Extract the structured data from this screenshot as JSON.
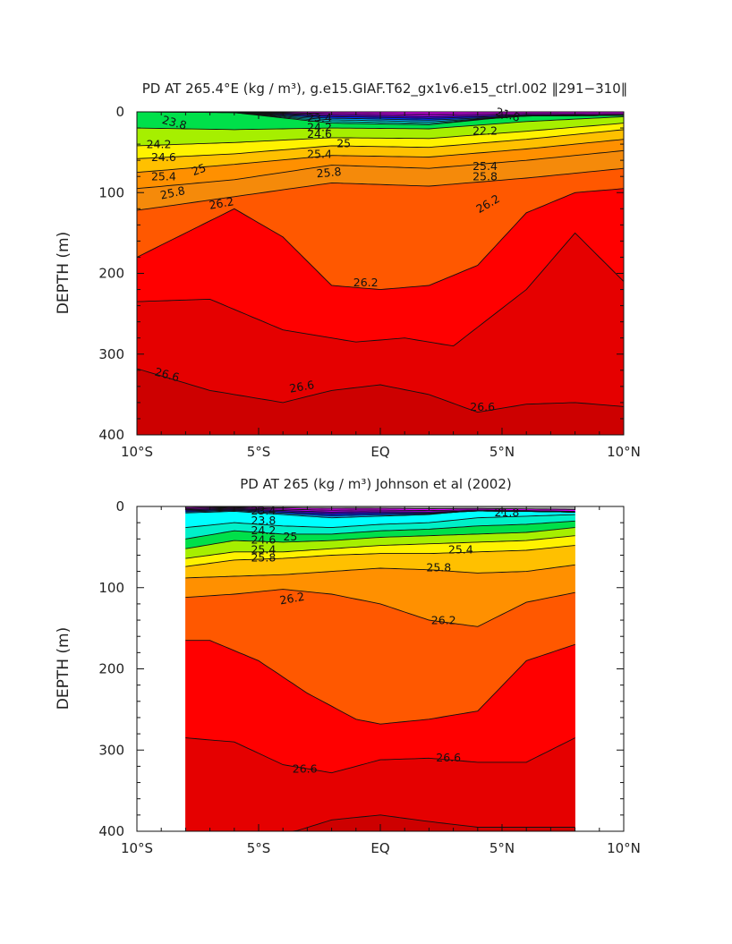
{
  "chart_data": [
    {
      "type": "contour",
      "title": "PD AT 265.4°E (kg / m³), g.e15.GIAF.T62_gx1v6.e15_ctrl.002 ‖291−310‖",
      "ylabel": "DEPTH (m)",
      "xlabel": "",
      "xlim": [
        -10,
        10
      ],
      "ylim": [
        0,
        400
      ],
      "y_inverted": true,
      "x_ticks": [
        {
          "v": -10,
          "label": "10°S"
        },
        {
          "v": -5,
          "label": "5°S"
        },
        {
          "v": 0,
          "label": "EQ"
        },
        {
          "v": 5,
          "label": "5°N"
        },
        {
          "v": 10,
          "label": "10°N"
        }
      ],
      "y_ticks": [
        {
          "v": 0,
          "label": "0"
        },
        {
          "v": 100,
          "label": "100"
        },
        {
          "v": 200,
          "label": "200"
        },
        {
          "v": 300,
          "label": "300"
        },
        {
          "v": 400,
          "label": "400"
        }
      ],
      "data_xrange": [
        -10,
        10
      ],
      "contours": [
        {
          "level": 23.4,
          "x": [
            -10,
            -6,
            -2,
            2,
            6,
            10
          ],
          "y": [
            0,
            1,
            14,
            16,
            4,
            0
          ]
        },
        {
          "level": 23.8,
          "x": [
            -10,
            -6,
            -2,
            2,
            6,
            10
          ],
          "y": [
            20,
            22,
            20,
            21,
            12,
            6
          ]
        },
        {
          "level": 24.2,
          "x": [
            -10,
            -6,
            -2,
            2,
            6,
            10
          ],
          "y": [
            42,
            38,
            32,
            33,
            24,
            14
          ]
        },
        {
          "level": 24.6,
          "x": [
            -10,
            -6,
            -2,
            2,
            6,
            10
          ],
          "y": [
            58,
            52,
            42,
            44,
            34,
            22
          ]
        },
        {
          "level": 25,
          "x": [
            -10,
            -6,
            -2,
            2,
            6,
            10
          ],
          "y": [
            75,
            65,
            54,
            56,
            46,
            34
          ]
        },
        {
          "level": 25.4,
          "x": [
            -10,
            -6,
            -2,
            2,
            6,
            10
          ],
          "y": [
            95,
            84,
            66,
            70,
            60,
            48
          ]
        },
        {
          "level": 25.8,
          "x": [
            -10,
            -6,
            -2,
            2,
            6,
            10
          ],
          "y": [
            122,
            105,
            88,
            92,
            82,
            70
          ]
        },
        {
          "level": 26.2,
          "x": [
            -10,
            -8,
            -6,
            -4,
            -2,
            0,
            2,
            4,
            6,
            8,
            10
          ],
          "y": [
            180,
            150,
            120,
            155,
            215,
            220,
            215,
            190,
            125,
            100,
            95
          ]
        },
        {
          "level": 26.4,
          "x": [
            -10,
            -7,
            -4,
            -1,
            1,
            3,
            6,
            8,
            10
          ],
          "y": [
            235,
            232,
            270,
            285,
            280,
            290,
            220,
            150,
            210
          ]
        },
        {
          "level": 26.6,
          "x": [
            -10,
            -7,
            -4,
            -2,
            0,
            2,
            4,
            6,
            8,
            10
          ],
          "y": [
            318,
            345,
            360,
            345,
            338,
            350,
            372,
            362,
            360,
            365
          ]
        }
      ],
      "contour_labels": [
        {
          "text": "21.8",
          "x": 5.2,
          "y": 8,
          "rotate": 15
        },
        {
          "text": "23.4",
          "x": -2.5,
          "y": 12,
          "rotate": 0
        },
        {
          "text": "23.8",
          "x": -8.5,
          "y": 18,
          "rotate": 15
        },
        {
          "text": "24.2",
          "x": -2.5,
          "y": 24,
          "rotate": 0
        },
        {
          "text": "24.2",
          "x": -9.1,
          "y": 45,
          "rotate": 0
        },
        {
          "text": "24.6",
          "x": -2.5,
          "y": 32,
          "rotate": 0
        },
        {
          "text": "24.6",
          "x": -8.9,
          "y": 61,
          "rotate": 0
        },
        {
          "text": "25",
          "x": -7.4,
          "y": 76,
          "rotate": -20
        },
        {
          "text": "25",
          "x": -1.5,
          "y": 44,
          "rotate": 0
        },
        {
          "text": "25.4",
          "x": -2.5,
          "y": 57,
          "rotate": 0
        },
        {
          "text": "25.4",
          "x": -8.9,
          "y": 85,
          "rotate": 0
        },
        {
          "text": "25.8",
          "x": -2.1,
          "y": 80,
          "rotate": -5
        },
        {
          "text": "25.8",
          "x": -8.5,
          "y": 105,
          "rotate": -12
        },
        {
          "text": "25.8",
          "x": 4.3,
          "y": 85,
          "rotate": 0
        },
        {
          "text": "22.2",
          "x": 4.3,
          "y": 28,
          "rotate": 0
        },
        {
          "text": "25.4",
          "x": 4.3,
          "y": 72,
          "rotate": 0
        },
        {
          "text": "26.2",
          "x": -6.5,
          "y": 118,
          "rotate": -10
        },
        {
          "text": "26.2",
          "x": 4.5,
          "y": 118,
          "rotate": -30
        },
        {
          "text": "26.2",
          "x": -0.6,
          "y": 216,
          "rotate": 0
        },
        {
          "text": "26.6",
          "x": -8.8,
          "y": 330,
          "rotate": 15
        },
        {
          "text": "26.6",
          "x": -3.2,
          "y": 345,
          "rotate": -10
        },
        {
          "text": "26.6",
          "x": 4.2,
          "y": 370,
          "rotate": 0
        }
      ],
      "colors": {
        "magenta": "#e100ff",
        "purple": "#b000e6",
        "indigo": "#4b00e0",
        "blue": "#0030ff",
        "lightblue": "#00a8ff",
        "cyan": "#00ffff",
        "aqua": "#00f0c8",
        "green": "#00e04a",
        "yellowgreen": "#a6ef00",
        "yellow": "#fff200",
        "goldorange": "#ffc000",
        "orange": "#ff9000",
        "deeporange": "#f58a0a",
        "redorange": "#ff5800",
        "red": "#ff0000",
        "darkred1": "#e50000",
        "darkred2": "#cd0000",
        "gray": "#aaaaaa"
      }
    },
    {
      "type": "contour",
      "title": "PD AT 265 (kg / m³) Johnson et al (2002)",
      "ylabel": "DEPTH (m)",
      "xlabel": "",
      "xlim": [
        -10,
        10
      ],
      "ylim": [
        0,
        400
      ],
      "y_inverted": true,
      "x_ticks": [
        {
          "v": -10,
          "label": "10°S"
        },
        {
          "v": -5,
          "label": "5°S"
        },
        {
          "v": 0,
          "label": "EQ"
        },
        {
          "v": 5,
          "label": "5°N"
        },
        {
          "v": 10,
          "label": "10°N"
        }
      ],
      "y_ticks": [
        {
          "v": 0,
          "label": "0"
        },
        {
          "v": 100,
          "label": "100"
        },
        {
          "v": 200,
          "label": "200"
        },
        {
          "v": 300,
          "label": "300"
        },
        {
          "v": 400,
          "label": "400"
        }
      ],
      "data_xrange": [
        -8,
        8
      ],
      "contours": [
        {
          "level": 23.4,
          "x": [
            -8,
            -6,
            -4,
            -2,
            0,
            2,
            4,
            6,
            8
          ],
          "y": [
            8,
            6,
            10,
            14,
            12,
            10,
            4,
            3,
            2
          ]
        },
        {
          "level": 23.8,
          "x": [
            -8,
            -6,
            -4,
            -2,
            0,
            2,
            4,
            6,
            8
          ],
          "y": [
            26,
            20,
            24,
            26,
            22,
            20,
            14,
            12,
            10
          ]
        },
        {
          "level": 24.2,
          "x": [
            -8,
            -6,
            -4,
            -2,
            0,
            2,
            4,
            6,
            8
          ],
          "y": [
            40,
            30,
            34,
            34,
            30,
            28,
            24,
            22,
            18
          ]
        },
        {
          "level": 24.6,
          "x": [
            -8,
            -6,
            -4,
            -2,
            0,
            2,
            4,
            6,
            8
          ],
          "y": [
            52,
            42,
            44,
            42,
            38,
            36,
            34,
            32,
            26
          ]
        },
        {
          "level": 25,
          "x": [
            -8,
            -6,
            -4,
            -2,
            0,
            2,
            4,
            6,
            8
          ],
          "y": [
            64,
            56,
            56,
            52,
            48,
            46,
            44,
            42,
            36
          ]
        },
        {
          "level": 25.4,
          "x": [
            -8,
            -6,
            -4,
            -2,
            0,
            2,
            4,
            6,
            8
          ],
          "y": [
            74,
            66,
            64,
            60,
            58,
            58,
            56,
            54,
            48
          ]
        },
        {
          "level": 25.8,
          "x": [
            -8,
            -6,
            -4,
            -2,
            0,
            2,
            4,
            6,
            8
          ],
          "y": [
            88,
            86,
            84,
            80,
            76,
            78,
            82,
            80,
            72
          ]
        },
        {
          "level": 26.2,
          "x": [
            -8,
            -6,
            -4,
            -2,
            0,
            2,
            4,
            6,
            8
          ],
          "y": [
            112,
            108,
            102,
            108,
            120,
            140,
            148,
            118,
            106
          ]
        },
        {
          "level": 26.4,
          "x": [
            -8,
            -7,
            -5,
            -3,
            -1,
            0,
            2,
            4,
            6,
            8
          ],
          "y": [
            165,
            165,
            190,
            230,
            262,
            268,
            262,
            252,
            190,
            170
          ]
        },
        {
          "level": 26.6,
          "x": [
            -8,
            -6,
            -4,
            -2,
            0,
            2,
            4,
            6,
            8
          ],
          "y": [
            285,
            290,
            318,
            328,
            312,
            310,
            315,
            315,
            285
          ]
        },
        {
          "level": 26.8,
          "x": [
            -3.5,
            -2,
            0,
            2,
            4
          ],
          "y": [
            400,
            386,
            380,
            388,
            395
          ]
        }
      ],
      "contour_labels": [
        {
          "text": "23.4",
          "x": -4.8,
          "y": 10,
          "rotate": 0
        },
        {
          "text": "23.8",
          "x": -4.8,
          "y": 22,
          "rotate": 0
        },
        {
          "text": "24.2",
          "x": -4.8,
          "y": 34,
          "rotate": 0
        },
        {
          "text": "24.6",
          "x": -4.8,
          "y": 46,
          "rotate": 0
        },
        {
          "text": "25",
          "x": -3.7,
          "y": 42,
          "rotate": 0
        },
        {
          "text": "25.4",
          "x": -4.8,
          "y": 58,
          "rotate": 0
        },
        {
          "text": "25.8",
          "x": -4.8,
          "y": 68,
          "rotate": 0
        },
        {
          "text": "21.8",
          "x": 5.2,
          "y": 12,
          "rotate": 0
        },
        {
          "text": "25.4",
          "x": 3.3,
          "y": 58,
          "rotate": 0
        },
        {
          "text": "25.8",
          "x": 2.4,
          "y": 80,
          "rotate": 0
        },
        {
          "text": "26.2",
          "x": -3.6,
          "y": 118,
          "rotate": -10
        },
        {
          "text": "26.2",
          "x": 2.6,
          "y": 145,
          "rotate": 0
        },
        {
          "text": "26.6",
          "x": -3.1,
          "y": 328,
          "rotate": 0
        },
        {
          "text": "26.6",
          "x": 2.8,
          "y": 314,
          "rotate": 0
        }
      ],
      "colors": {
        "magenta": "#e100ff",
        "purple": "#b000e6",
        "indigo": "#4b00e0",
        "blue": "#0030ff",
        "lightblue": "#00a8ff",
        "cyan": "#00ffff",
        "aqua": "#00f0c8",
        "green": "#00e04a",
        "yellowgreen": "#a6ef00",
        "yellow": "#fff200",
        "goldorange": "#ffc000",
        "orange": "#ff9000",
        "redorange": "#ff5800",
        "red": "#ff0000",
        "darkred1": "#e50000",
        "darkred2": "#cd0000",
        "gray": "#aaaaaa"
      }
    }
  ]
}
